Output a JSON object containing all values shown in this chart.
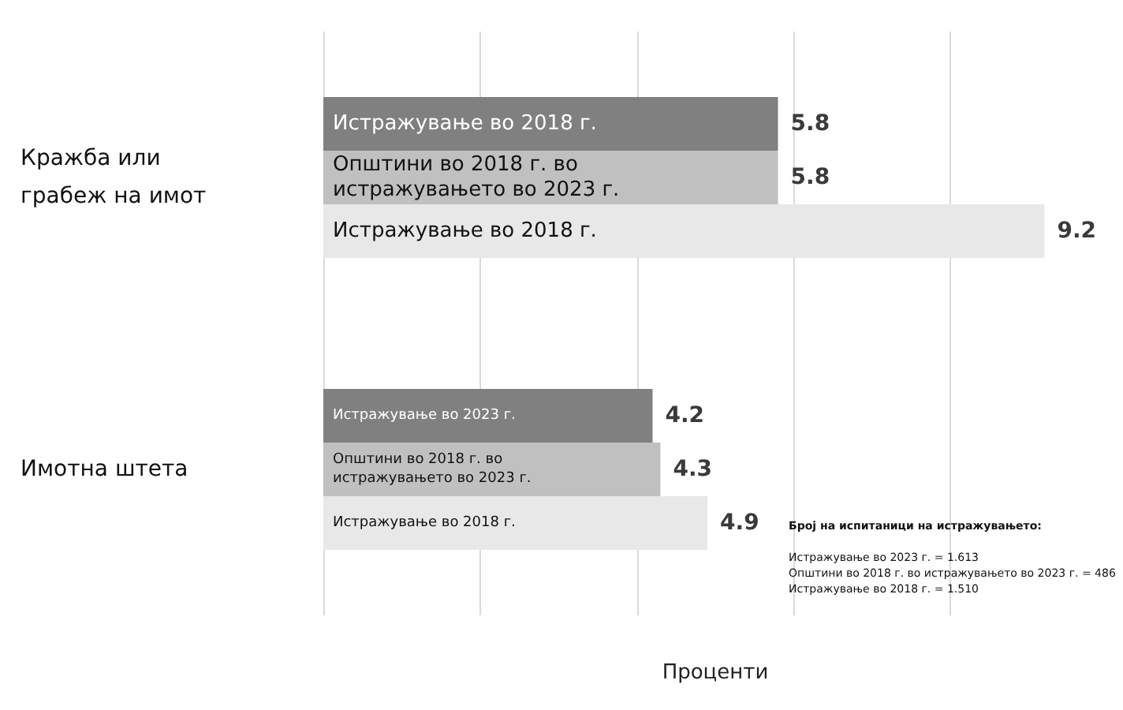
{
  "chart_data": {
    "type": "bar",
    "orientation": "horizontal",
    "xlabel": "Проценти",
    "categories": [
      "Кражба или грабеж на имот",
      "Имотна штета"
    ],
    "series": [
      {
        "color": "#808080",
        "values": [
          5.8,
          4.2
        ]
      },
      {
        "color": "#c0c0c0",
        "values": [
          5.8,
          4.3
        ]
      },
      {
        "color": "#e8e8e8",
        "values": [
          9.2,
          4.9
        ]
      }
    ],
    "xticks": [
      {
        "value": 0,
        "label": null
      },
      {
        "value": 2,
        "label": null
      },
      {
        "value": 4,
        "label": null
      },
      {
        "value": 6,
        "label": null
      },
      {
        "value": 8,
        "label": null
      }
    ],
    "grid": "x",
    "tick_labels": "y",
    "data_labels": true,
    "annotations": [
      "Истражување во 2018 г.",
      "Општини во 2018 г. во истражувањето во 2023 г.",
      "Истражување во 2018 г.",
      "Истражување во 2023 г.",
      "Општини во 2018 г. во истражувањето во 2023 г.",
      "Истражување во 2018 г.",
      "Број на испитаници на истражувањето:",
      "Истражување во 2023 г. = 1.613",
      "Општини во 2018 г. во истражувањето во 2023 г. = 486",
      "Истражување во 2018 г. = 1.510"
    ]
  }
}
